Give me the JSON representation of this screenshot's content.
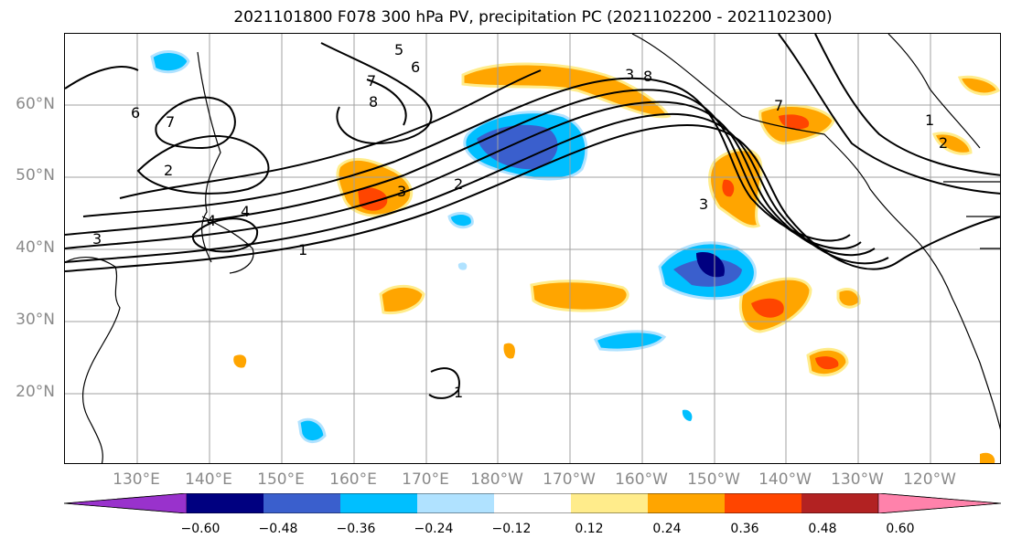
{
  "title": "2021101800 F078 300 hPa PV, precipitation PC (2021102200 - 2021102300)",
  "lat_labels": [
    "60°N",
    "50°N",
    "40°N",
    "30°N",
    "20°N"
  ],
  "lon_labels": [
    "130°E",
    "140°E",
    "150°E",
    "160°E",
    "170°E",
    "180°W",
    "170°W",
    "160°W",
    "150°W",
    "140°W",
    "130°W",
    "120°W"
  ],
  "colorbar": {
    "levels": [
      "−0.60",
      "−0.48",
      "−0.36",
      "−0.24",
      "−0.12",
      "0.12",
      "0.24",
      "0.36",
      "0.48",
      "0.60"
    ],
    "colors": [
      "#9932cc",
      "#000080",
      "#3a5fcd",
      "#00bfff",
      "#b0e2ff",
      "#ffffff",
      "#ffec8b",
      "#ffa500",
      "#ff4500",
      "#b22222",
      "#ff82ab"
    ]
  },
  "contour_labels": [
    "1",
    "2",
    "3",
    "4",
    "5",
    "6",
    "7",
    "8"
  ],
  "map_labels": [
    "1",
    "1",
    "1",
    "2",
    "2",
    "2",
    "3",
    "3",
    "3",
    "3",
    "4",
    "4",
    "5",
    "6",
    "6",
    "7",
    "7",
    "7",
    "8",
    "8"
  ]
}
